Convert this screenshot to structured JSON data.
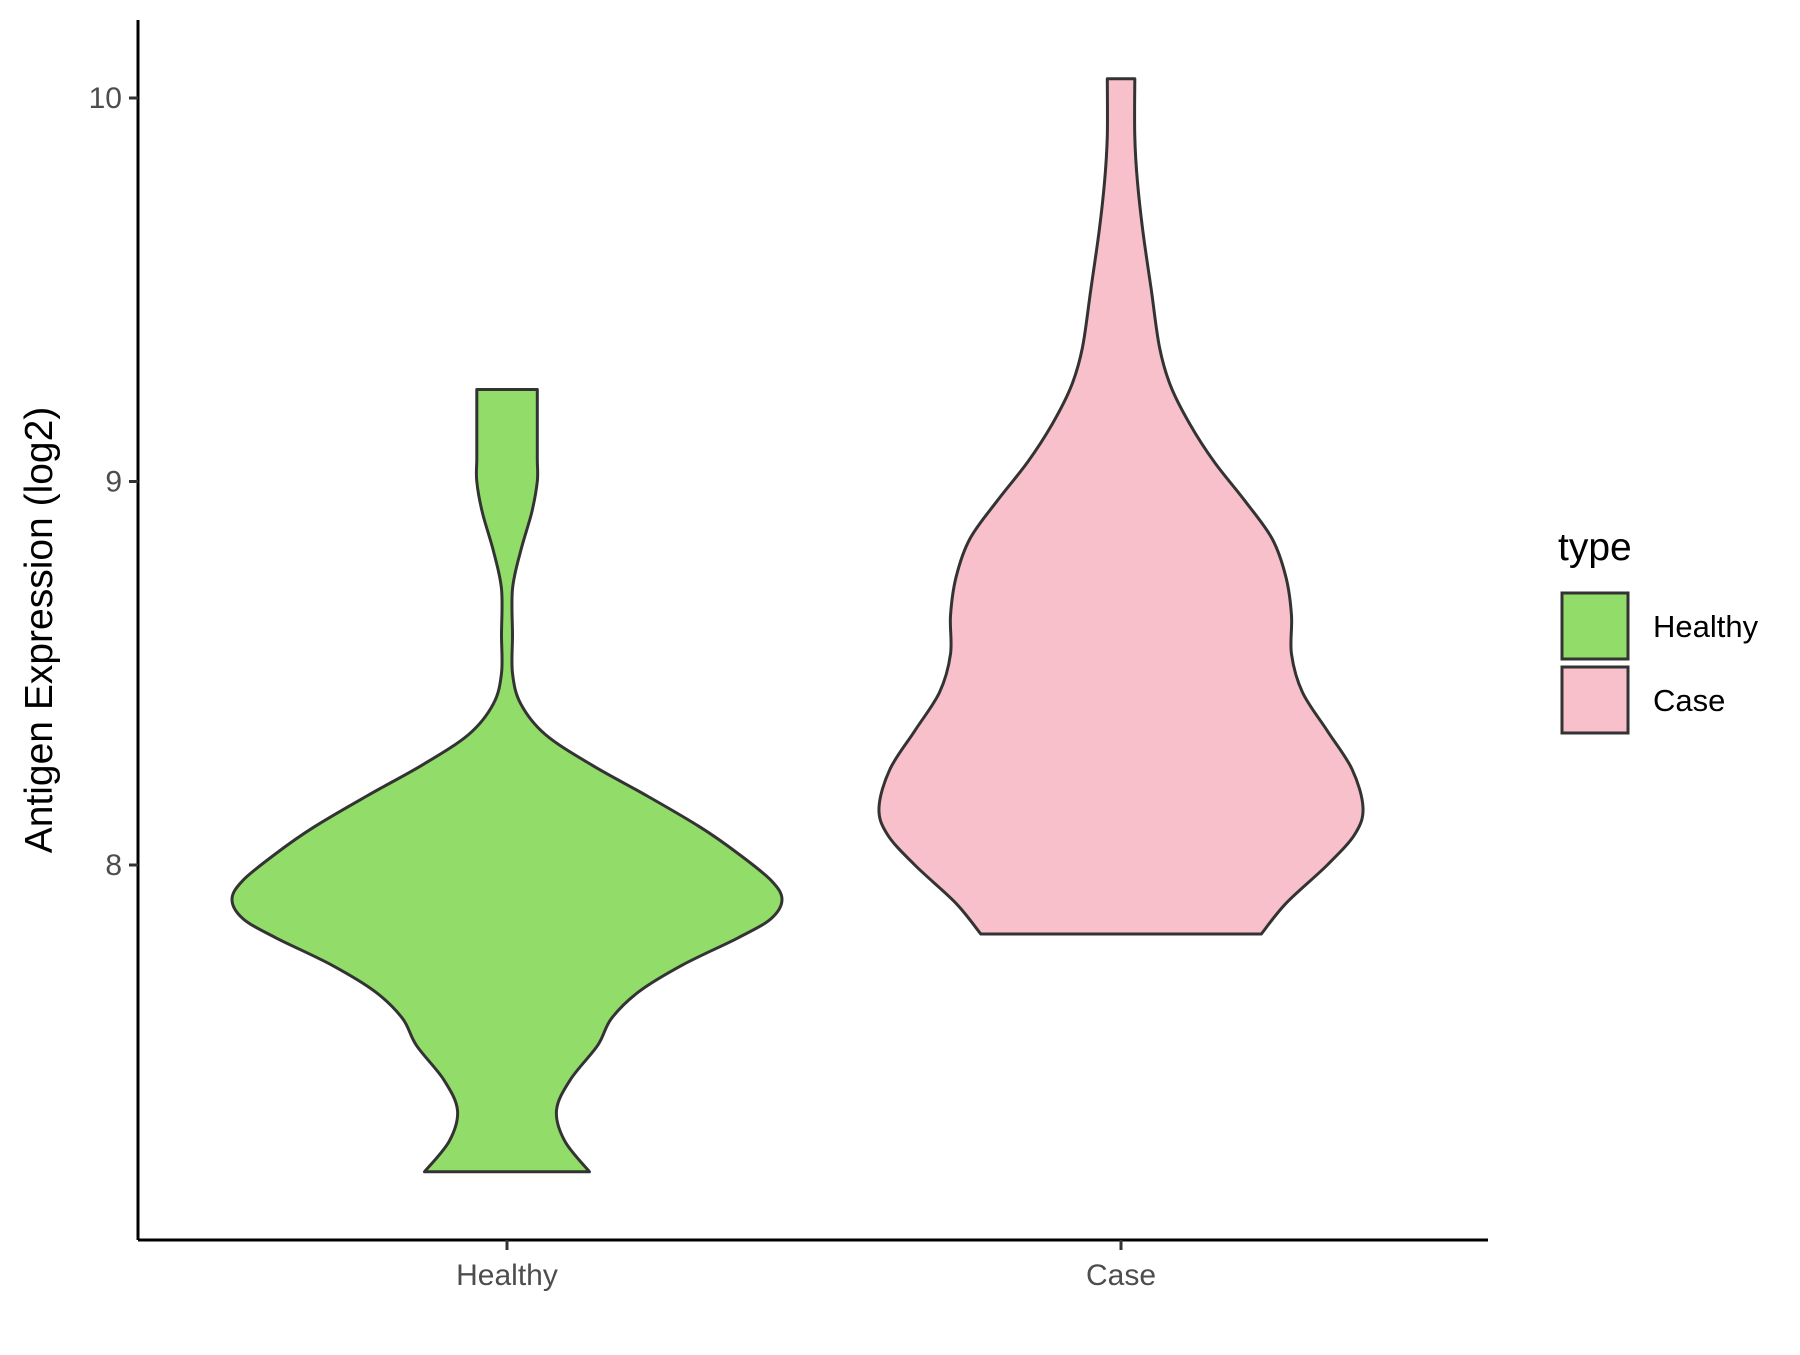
{
  "chart_data": {
    "type": "violin",
    "title": "",
    "xlabel": "",
    "ylabel": "Antigen Expression (log2)",
    "ylim": [
      7.05,
      10.2
    ],
    "yticks": [
      8,
      9,
      10
    ],
    "grid": false,
    "categories": [
      "Healthy",
      "Case"
    ],
    "colors": {
      "Healthy": "#92dc6a",
      "Case": "#f7c0cb",
      "outline": "#333333"
    },
    "legend": {
      "title": "type",
      "position": "right",
      "entries": [
        "Healthy",
        "Case"
      ]
    },
    "series": [
      {
        "category": "Healthy",
        "min": 7.2,
        "max": 9.24,
        "density_profile": [
          [
            7.2,
            0.3
          ],
          [
            7.28,
            0.21
          ],
          [
            7.36,
            0.18
          ],
          [
            7.44,
            0.23
          ],
          [
            7.53,
            0.33
          ],
          [
            7.6,
            0.38
          ],
          [
            7.67,
            0.48
          ],
          [
            7.74,
            0.64
          ],
          [
            7.81,
            0.84
          ],
          [
            7.86,
            0.96
          ],
          [
            7.91,
            1.0
          ],
          [
            7.96,
            0.96
          ],
          [
            8.03,
            0.84
          ],
          [
            8.1,
            0.7
          ],
          [
            8.18,
            0.51
          ],
          [
            8.26,
            0.31
          ],
          [
            8.34,
            0.14
          ],
          [
            8.42,
            0.05
          ],
          [
            8.5,
            0.02
          ],
          [
            8.6,
            0.02
          ],
          [
            8.72,
            0.02
          ],
          [
            8.82,
            0.05
          ],
          [
            8.92,
            0.09
          ],
          [
            9.0,
            0.11
          ],
          [
            9.06,
            0.11
          ],
          [
            9.15,
            0.11
          ],
          [
            9.24,
            0.11
          ]
        ]
      },
      {
        "category": "Case",
        "min": 7.82,
        "max": 10.05,
        "density_profile": [
          [
            7.82,
            0.51
          ],
          [
            7.9,
            0.6
          ],
          [
            8.0,
            0.75
          ],
          [
            8.08,
            0.85
          ],
          [
            8.15,
            0.88
          ],
          [
            8.25,
            0.84
          ],
          [
            8.35,
            0.75
          ],
          [
            8.45,
            0.66
          ],
          [
            8.55,
            0.62
          ],
          [
            8.65,
            0.62
          ],
          [
            8.75,
            0.6
          ],
          [
            8.85,
            0.55
          ],
          [
            8.95,
            0.45
          ],
          [
            9.05,
            0.34
          ],
          [
            9.15,
            0.25
          ],
          [
            9.25,
            0.18
          ],
          [
            9.35,
            0.14
          ],
          [
            9.5,
            0.11
          ],
          [
            9.65,
            0.08
          ],
          [
            9.78,
            0.06
          ],
          [
            9.9,
            0.05
          ],
          [
            10.05,
            0.05
          ]
        ]
      }
    ]
  }
}
